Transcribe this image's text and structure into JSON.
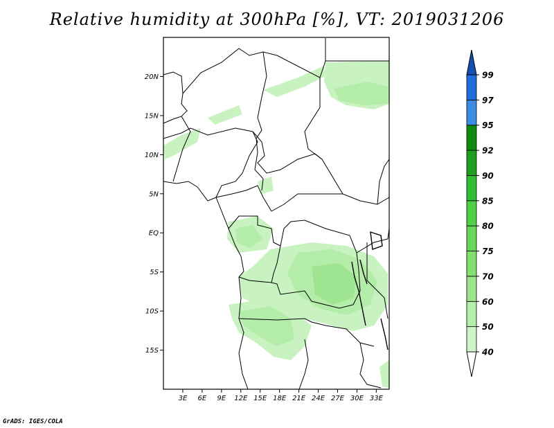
{
  "title": "Relative humidity at 300hPa [%], VT: 2019031206",
  "credit": "GrADS: IGES/COLA",
  "map": {
    "lat_ticks": [
      "20N",
      "15N",
      "10N",
      "5N",
      "EQ",
      "5S",
      "10S",
      "15S"
    ],
    "lon_ticks": [
      "3E",
      "6E",
      "9E",
      "12E",
      "15E",
      "18E",
      "21E",
      "24E",
      "27E",
      "30E",
      "33E"
    ],
    "lat_values": [
      20,
      15,
      10,
      5,
      0,
      -5,
      -10,
      -15
    ],
    "lon_values": [
      3,
      6,
      9,
      12,
      15,
      18,
      21,
      24,
      27,
      30,
      33
    ],
    "lat_range": [
      -20,
      25
    ],
    "lon_range": [
      0,
      35
    ]
  },
  "colorbar": {
    "labels": [
      "40",
      "50",
      "60",
      "70",
      "75",
      "80",
      "85",
      "90",
      "92",
      "95",
      "97",
      "99"
    ],
    "colors": [
      "#e6fae6",
      "#cdf5c8",
      "#b4f0aa",
      "#9be68c",
      "#82e070",
      "#69d85a",
      "#50d046",
      "#32be32",
      "#1ea01e",
      "#0f8c0f",
      "#3c8ce6",
      "#1e6edc",
      "#1450b4"
    ]
  }
}
